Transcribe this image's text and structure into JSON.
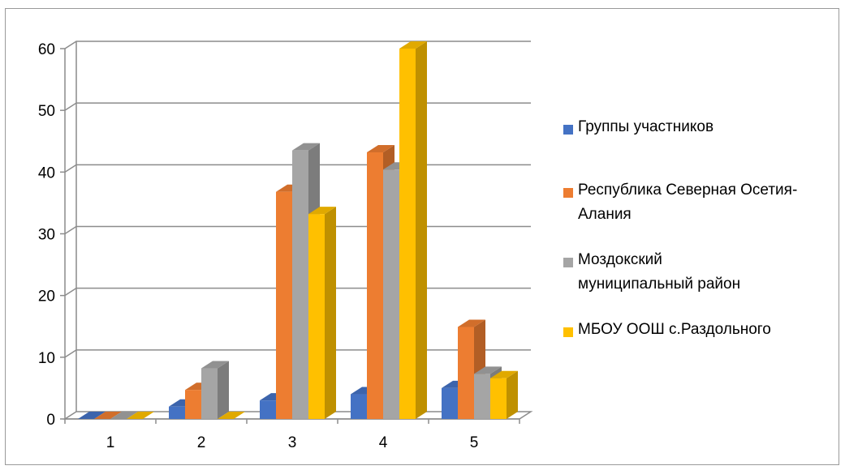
{
  "chart_data": {
    "type": "bar",
    "categories": [
      "1",
      "2",
      "3",
      "4",
      "5"
    ],
    "series": [
      {
        "name": "Группы участников",
        "color": "#4472C4",
        "values": [
          0,
          2,
          3,
          4,
          5
        ]
      },
      {
        "name": "Республика Северная Осетия-Алания",
        "color": "#ED7D31",
        "values": [
          0,
          4.7,
          36.8,
          43.2,
          14.9
        ]
      },
      {
        "name": "Моздокский муниципальный район",
        "color": "#A5A5A5",
        "values": [
          0,
          8.2,
          43.5,
          40.4,
          7.3
        ]
      },
      {
        "name": "МБОУ ООШ с.Раздольного",
        "color": "#FFC000",
        "values": [
          0,
          0,
          33.2,
          60,
          6.6
        ]
      }
    ],
    "y_ticks": [
      "0",
      "10",
      "20",
      "30",
      "40",
      "50",
      "60"
    ],
    "ylim": [
      0,
      60
    ],
    "grid": true,
    "legend_position": "right"
  }
}
